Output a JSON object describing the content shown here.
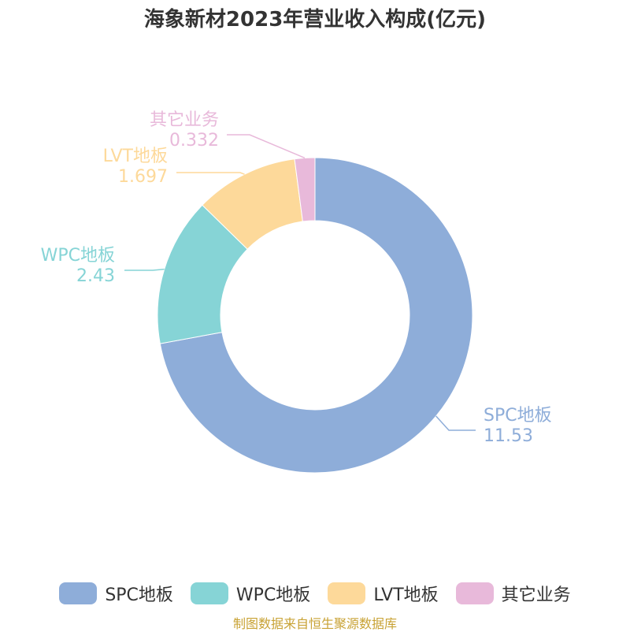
{
  "title": "海象新材2023年营业收入构成(亿元)",
  "source": "制图数据来自恒生聚源数据库",
  "chart_data": {
    "type": "pie",
    "title": "海象新材2023年营业收入构成(亿元)",
    "donut": true,
    "legend_position": "bottom",
    "series": [
      {
        "name": "SPC地板",
        "value": 11.53,
        "label": "11.53",
        "color": "#8eadd9"
      },
      {
        "name": "WPC地板",
        "value": 2.43,
        "label": "2.43",
        "color": "#86d4d6"
      },
      {
        "name": "LVT地板",
        "value": 1.697,
        "label": "1.697",
        "color": "#fdd99a"
      },
      {
        "name": "其它业务",
        "value": 0.332,
        "label": "0.332",
        "color": "#e8b9da"
      }
    ]
  }
}
